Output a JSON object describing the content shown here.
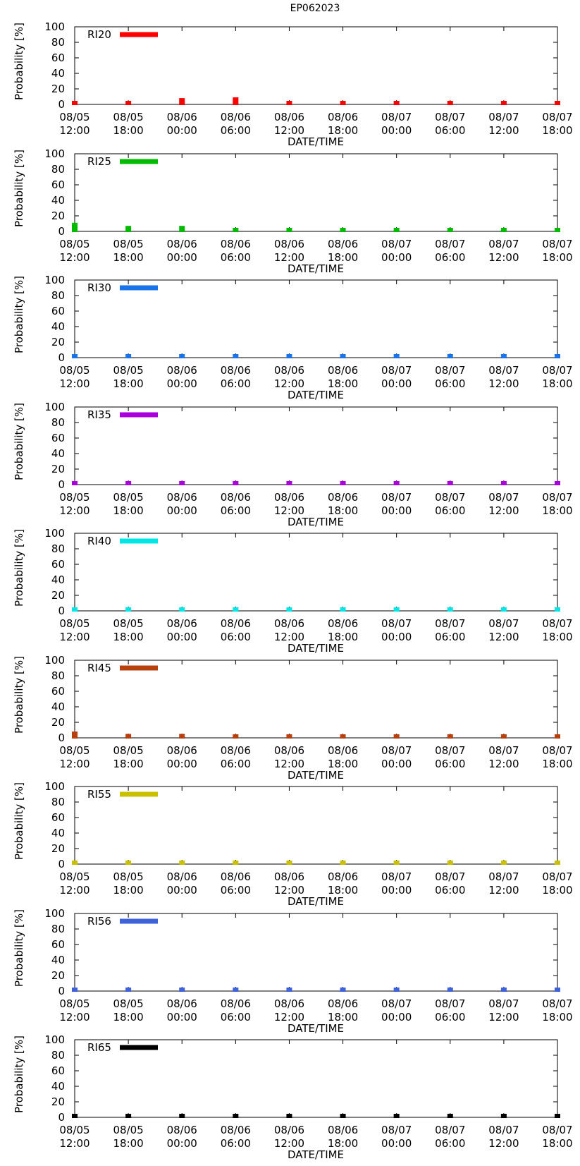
{
  "figure_title": "EP062023",
  "chart_data": [
    {
      "type": "bar",
      "legend": "RI20",
      "color": "#ff0000",
      "categories": [
        "08/05 12:00",
        "08/05 18:00",
        "08/06 00:00",
        "08/06 06:00",
        "08/06 12:00",
        "08/06 18:00",
        "08/07 00:00",
        "08/07 06:00",
        "08/07 12:00",
        "08/07 18:00"
      ],
      "values": [
        2,
        3,
        9,
        10,
        4,
        1,
        1,
        1,
        1,
        1
      ],
      "xlabel": "DATE/TIME",
      "ylabel": "Probability [%]",
      "ylim": [
        0,
        100
      ],
      "yticks": [
        "0",
        "20",
        "40",
        "60",
        "80",
        "100"
      ]
    },
    {
      "type": "bar",
      "legend": "RI25",
      "color": "#00bb00",
      "categories": [
        "08/05 12:00",
        "08/05 18:00",
        "08/06 00:00",
        "08/06 06:00",
        "08/06 12:00",
        "08/06 18:00",
        "08/07 00:00",
        "08/07 06:00",
        "08/07 12:00",
        "08/07 18:00"
      ],
      "values": [
        12,
        8,
        8,
        4,
        1,
        1,
        1,
        1,
        1,
        1
      ],
      "xlabel": "DATE/TIME",
      "ylabel": "Probability [%]",
      "ylim": [
        0,
        100
      ],
      "yticks": [
        "0",
        "20",
        "40",
        "60",
        "80",
        "100"
      ]
    },
    {
      "type": "bar",
      "legend": "RI30",
      "color": "#1a73e8",
      "categories": [
        "08/05 12:00",
        "08/05 18:00",
        "08/06 00:00",
        "08/06 06:00",
        "08/06 12:00",
        "08/06 18:00",
        "08/07 00:00",
        "08/07 06:00",
        "08/07 12:00",
        "08/07 18:00"
      ],
      "values": [
        5,
        3,
        4,
        2,
        1,
        1,
        1,
        1,
        1,
        1
      ],
      "xlabel": "DATE/TIME",
      "ylabel": "Probability [%]",
      "ylim": [
        0,
        100
      ],
      "yticks": [
        "0",
        "20",
        "40",
        "60",
        "80",
        "100"
      ]
    },
    {
      "type": "bar",
      "legend": "RI35",
      "color": "#aa00dd",
      "categories": [
        "08/05 12:00",
        "08/05 18:00",
        "08/06 00:00",
        "08/06 06:00",
        "08/06 12:00",
        "08/06 18:00",
        "08/07 00:00",
        "08/07 06:00",
        "08/07 12:00",
        "08/07 18:00"
      ],
      "values": [
        4,
        3,
        4,
        2,
        1,
        1,
        1,
        1,
        1,
        1
      ],
      "xlabel": "DATE/TIME",
      "ylabel": "Probability [%]",
      "ylim": [
        0,
        100
      ],
      "yticks": [
        "0",
        "20",
        "40",
        "60",
        "80",
        "100"
      ]
    },
    {
      "type": "bar",
      "legend": "RI40",
      "color": "#00e5e5",
      "categories": [
        "08/05 12:00",
        "08/05 18:00",
        "08/06 00:00",
        "08/06 06:00",
        "08/06 12:00",
        "08/06 18:00",
        "08/07 00:00",
        "08/07 06:00",
        "08/07 12:00",
        "08/07 18:00"
      ],
      "values": [
        3,
        2,
        3,
        2,
        1,
        1,
        1,
        1,
        1,
        1
      ],
      "xlabel": "DATE/TIME",
      "ylabel": "Probability [%]",
      "ylim": [
        0,
        100
      ],
      "yticks": [
        "0",
        "20",
        "40",
        "60",
        "80",
        "100"
      ]
    },
    {
      "type": "bar",
      "legend": "RI45",
      "color": "#b8400f",
      "categories": [
        "08/05 12:00",
        "08/05 18:00",
        "08/06 00:00",
        "08/06 06:00",
        "08/06 12:00",
        "08/06 18:00",
        "08/07 00:00",
        "08/07 06:00",
        "08/07 12:00",
        "08/07 18:00"
      ],
      "values": [
        9,
        6,
        6,
        4,
        1,
        1,
        1,
        1,
        1,
        1
      ],
      "xlabel": "DATE/TIME",
      "ylabel": "Probability [%]",
      "ylim": [
        0,
        100
      ],
      "yticks": [
        "0",
        "20",
        "40",
        "60",
        "80",
        "100"
      ]
    },
    {
      "type": "bar",
      "legend": "RI55",
      "color": "#c8c000",
      "categories": [
        "08/05 12:00",
        "08/05 18:00",
        "08/06 00:00",
        "08/06 06:00",
        "08/06 12:00",
        "08/06 18:00",
        "08/07 00:00",
        "08/07 06:00",
        "08/07 12:00",
        "08/07 18:00"
      ],
      "values": [
        3,
        2,
        2,
        1,
        1,
        1,
        1,
        1,
        1,
        1
      ],
      "xlabel": "DATE/TIME",
      "ylabel": "Probability [%]",
      "ylim": [
        0,
        100
      ],
      "yticks": [
        "0",
        "20",
        "40",
        "60",
        "80",
        "100"
      ]
    },
    {
      "type": "bar",
      "legend": "RI56",
      "color": "#3d62d9",
      "categories": [
        "08/05 12:00",
        "08/05 18:00",
        "08/06 00:00",
        "08/06 06:00",
        "08/06 12:00",
        "08/06 18:00",
        "08/07 00:00",
        "08/07 06:00",
        "08/07 12:00",
        "08/07 18:00"
      ],
      "values": [
        1,
        2,
        1,
        1,
        1,
        1,
        1,
        1,
        1,
        1
      ],
      "xlabel": "DATE/TIME",
      "ylabel": "Probability [%]",
      "ylim": [
        0,
        100
      ],
      "yticks": [
        "0",
        "20",
        "40",
        "60",
        "80",
        "100"
      ]
    },
    {
      "type": "bar",
      "legend": "RI65",
      "color": "#000000",
      "categories": [
        "08/05 12:00",
        "08/05 18:00",
        "08/06 00:00",
        "08/06 06:00",
        "08/06 12:00",
        "08/06 18:00",
        "08/07 00:00",
        "08/07 06:00",
        "08/07 12:00",
        "08/07 18:00"
      ],
      "values": [
        1,
        1,
        1,
        1,
        1,
        1,
        1,
        1,
        1,
        1
      ],
      "xlabel": "DATE/TIME",
      "ylabel": "Probability [%]",
      "ylim": [
        0,
        100
      ],
      "yticks": [
        "0",
        "20",
        "40",
        "60",
        "80",
        "100"
      ]
    }
  ]
}
